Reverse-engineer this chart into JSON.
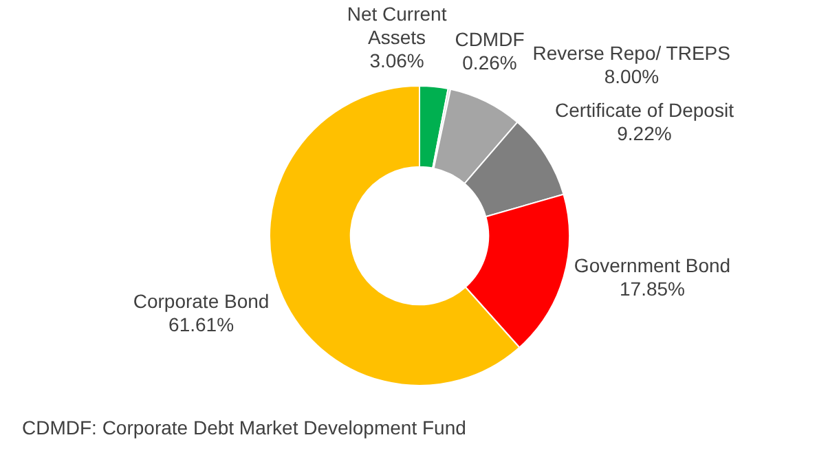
{
  "chart_data": {
    "type": "donut",
    "categories": [
      "Net Current Assets",
      "CDMDF",
      "Reverse Repo/ TREPS",
      "Certificate of Deposit",
      "Government Bond",
      "Corporate Bond"
    ],
    "values": [
      3.06,
      0.26,
      8.0,
      9.22,
      17.85,
      61.61
    ],
    "value_labels": [
      "3.06%",
      "0.26%",
      "8.00%",
      "9.22%",
      "17.85%",
      "61.61%"
    ],
    "colors": [
      "#00b050",
      "#d9d9d9",
      "#a5a5a5",
      "#7f7f7f",
      "#ff0000",
      "#ffc000"
    ],
    "legend": false,
    "annotations": [
      "CDMDF: Corporate Debt Market Development Fund"
    ]
  }
}
